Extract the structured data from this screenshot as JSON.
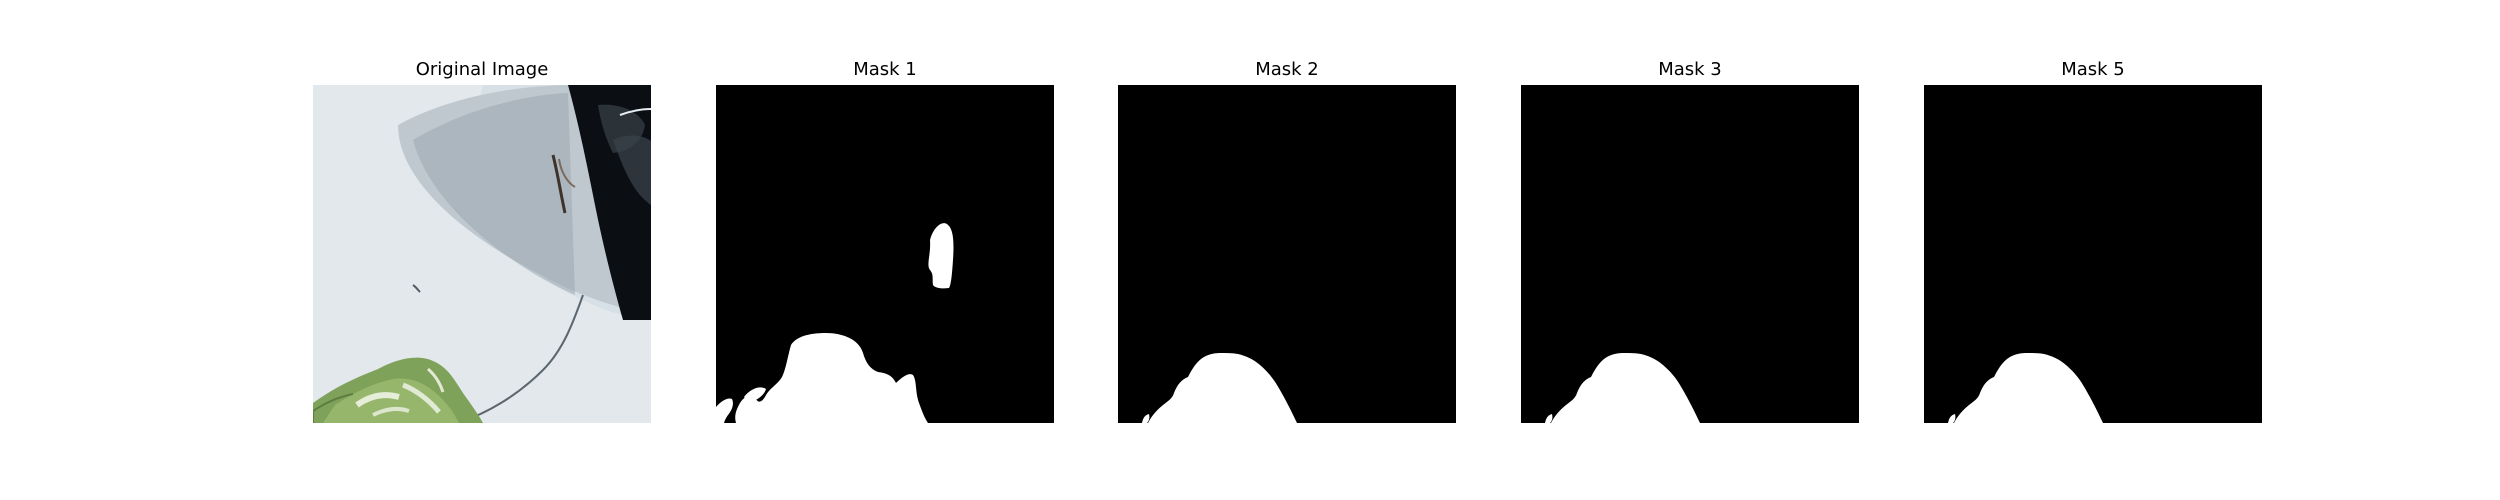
{
  "panels": [
    {
      "title": "Original Image",
      "kind": "photo"
    },
    {
      "title": "Mask 1",
      "kind": "binary-mask"
    },
    {
      "title": "Mask 2",
      "kind": "binary-mask"
    },
    {
      "title": "Mask 3",
      "kind": "binary-mask"
    },
    {
      "title": "Mask 5",
      "kind": "binary-mask"
    }
  ],
  "colors": {
    "background": "#ffffff",
    "mask_background": "#000000",
    "mask_foreground": "#ffffff",
    "photo_surface": "#d9e1e6",
    "photo_leaf": "#7f9f58"
  }
}
